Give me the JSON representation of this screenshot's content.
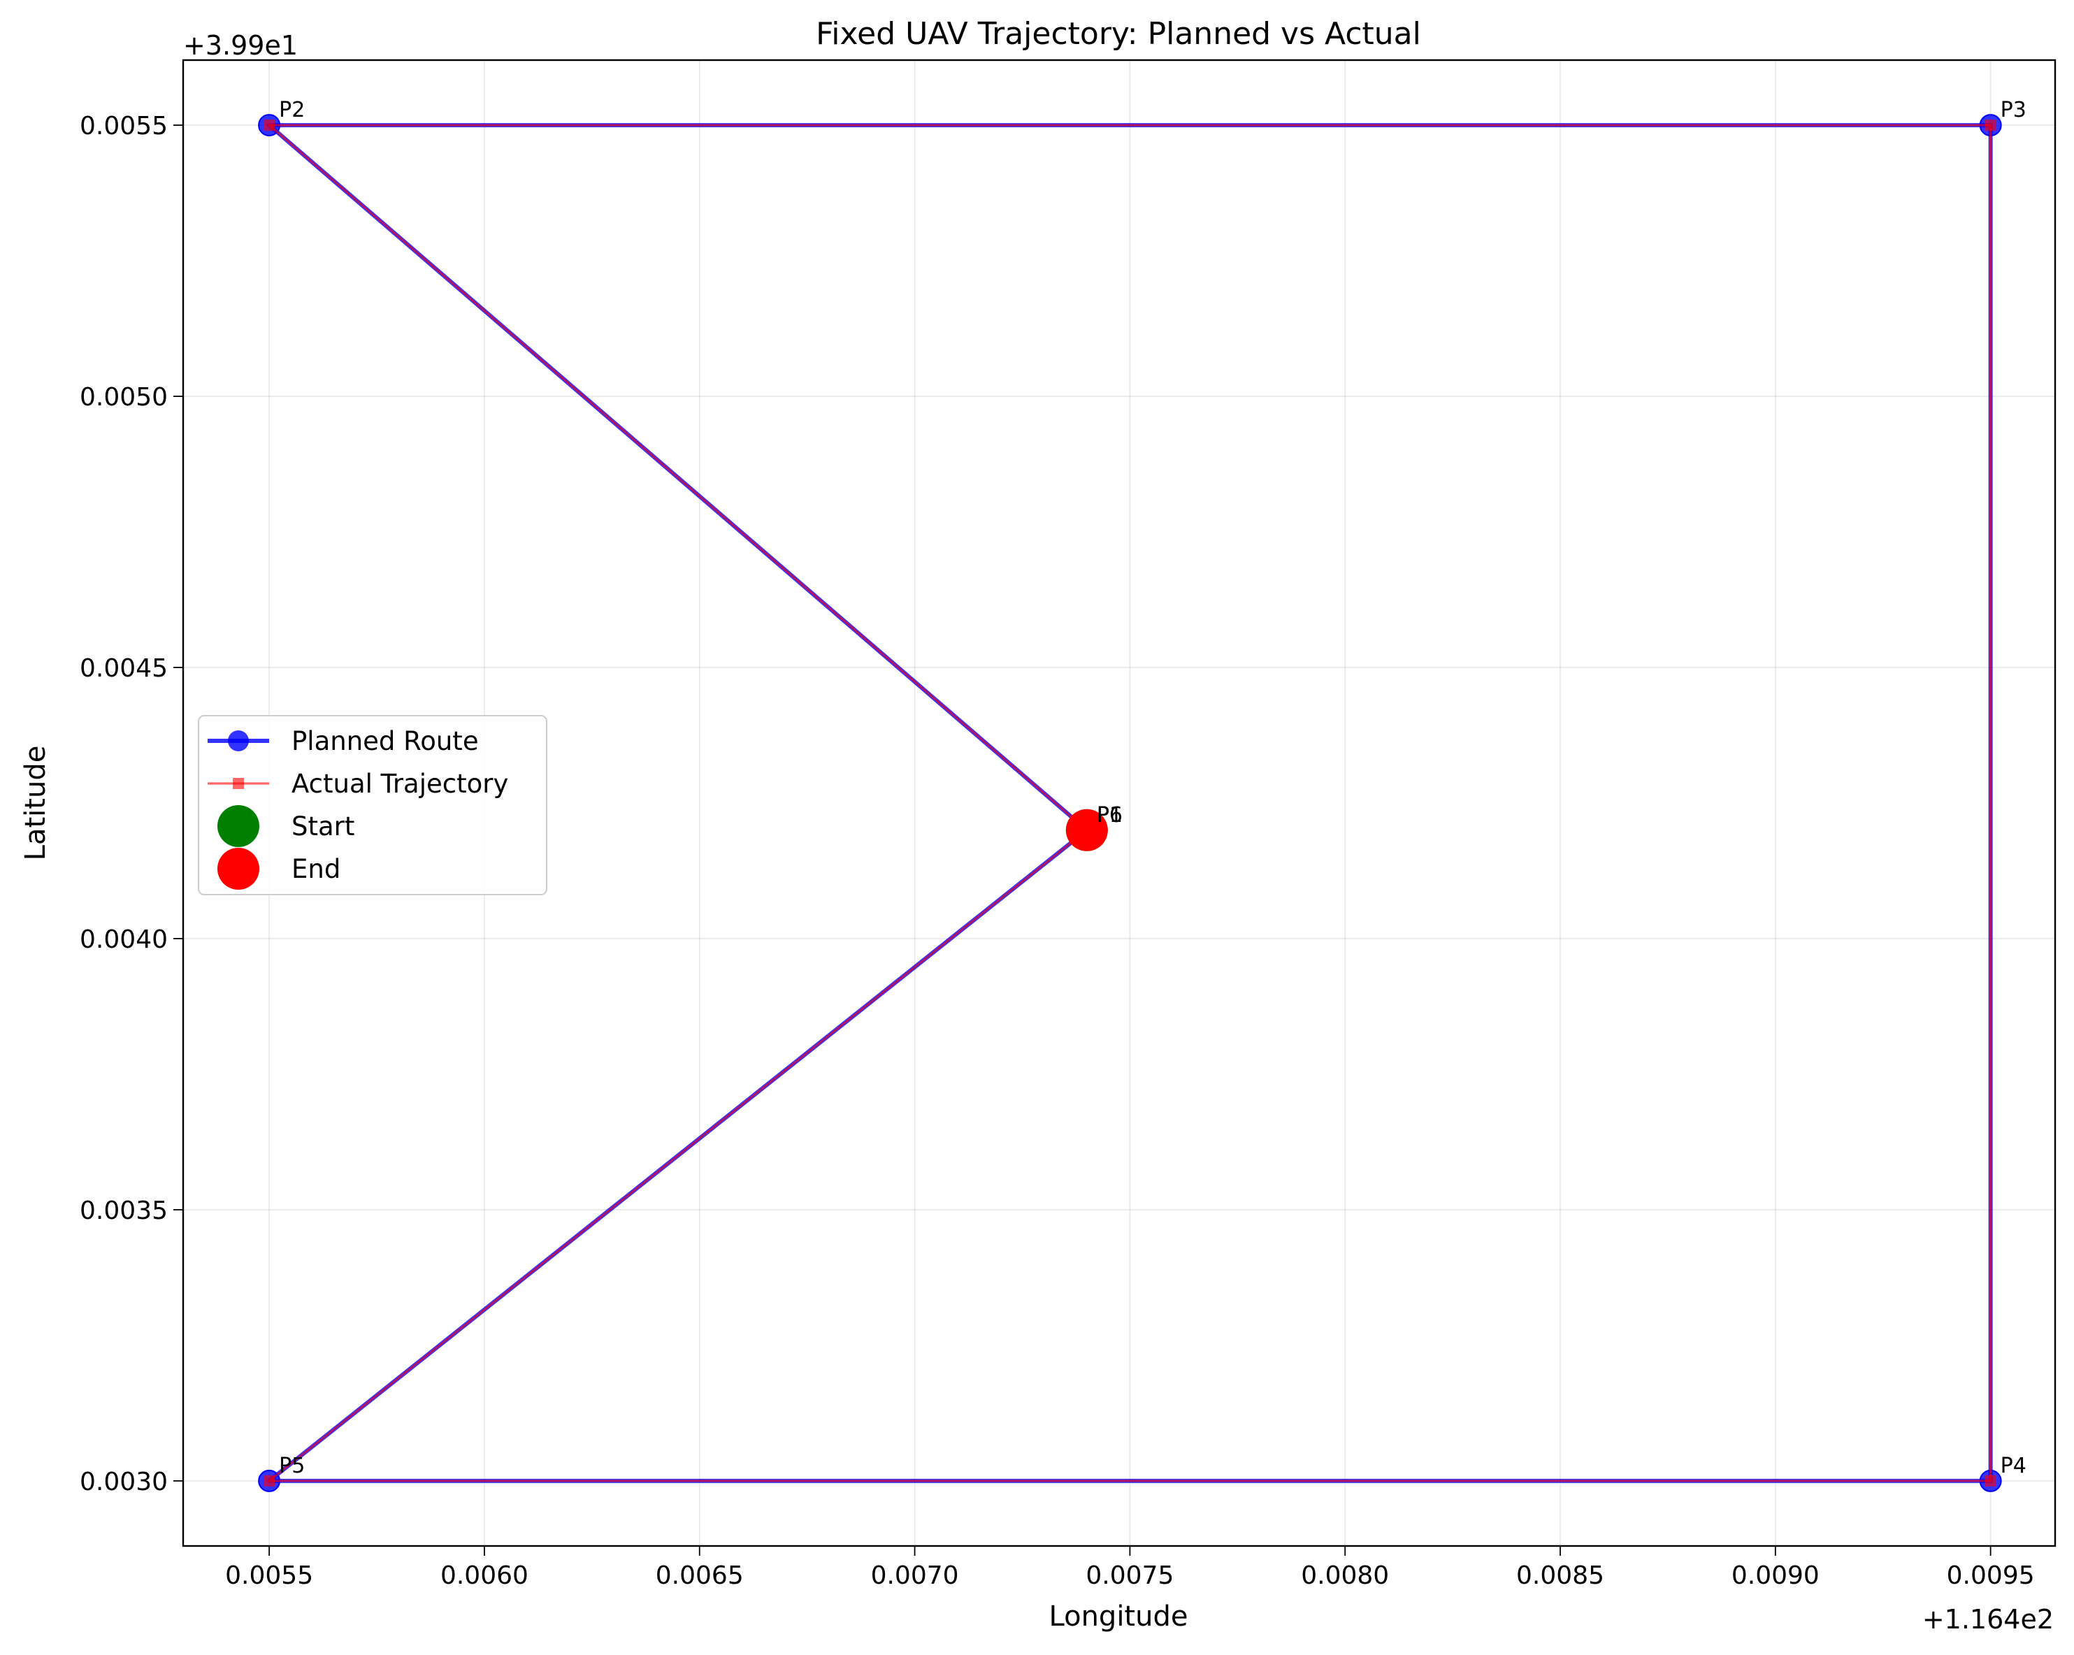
{
  "chart_data": {
    "type": "line",
    "title": "Fixed UAV Trajectory: Planned vs Actual",
    "xlabel": "Longitude",
    "ylabel": "Latitude",
    "x_offset_label": "+1.164e2",
    "y_offset_label": "+3.99e1",
    "xlim": [
      0.0053,
      0.00965
    ],
    "ylim": [
      0.00288,
      0.00562
    ],
    "xticks": [
      0.0055,
      0.006,
      0.0065,
      0.007,
      0.0075,
      0.008,
      0.0085,
      0.009,
      0.0095
    ],
    "xtick_labels": [
      "0.0055",
      "0.0060",
      "0.0065",
      "0.0070",
      "0.0075",
      "0.0080",
      "0.0085",
      "0.0090",
      "0.0095"
    ],
    "yticks": [
      0.003,
      0.0035,
      0.004,
      0.0045,
      0.005,
      0.0055
    ],
    "ytick_labels": [
      "0.0030",
      "0.0035",
      "0.0040",
      "0.0045",
      "0.0050",
      "0.0055"
    ],
    "grid": true,
    "legend_position": "center-left",
    "series": [
      {
        "name": "Planned Route",
        "color": "#0000ff",
        "marker": "circle",
        "x": [
          0.0074,
          0.0055,
          0.0095,
          0.0095,
          0.0055,
          0.0074
        ],
        "y": [
          0.0042,
          0.0055,
          0.0055,
          0.003,
          0.003,
          0.0042
        ]
      },
      {
        "name": "Actual Trajectory",
        "color": "#ff0000",
        "marker": "square",
        "x": [
          0.0074,
          0.0055,
          0.0095,
          0.0095,
          0.0055,
          0.0074
        ],
        "y": [
          0.0042,
          0.0055,
          0.0055,
          0.003,
          0.003,
          0.0042
        ]
      }
    ],
    "points": [
      {
        "name": "Start",
        "color": "#008000",
        "x": 0.0074,
        "y": 0.0042
      },
      {
        "name": "End",
        "color": "#ff0000",
        "x": 0.0074,
        "y": 0.0042
      }
    ],
    "annotations": [
      {
        "text": "P1",
        "x": 0.0074,
        "y": 0.0042
      },
      {
        "text": "P2",
        "x": 0.0055,
        "y": 0.0055
      },
      {
        "text": "P3",
        "x": 0.0095,
        "y": 0.0055
      },
      {
        "text": "P4",
        "x": 0.0095,
        "y": 0.003
      },
      {
        "text": "P5",
        "x": 0.0055,
        "y": 0.003
      },
      {
        "text": "P6",
        "x": 0.0074,
        "y": 0.0042
      }
    ]
  }
}
